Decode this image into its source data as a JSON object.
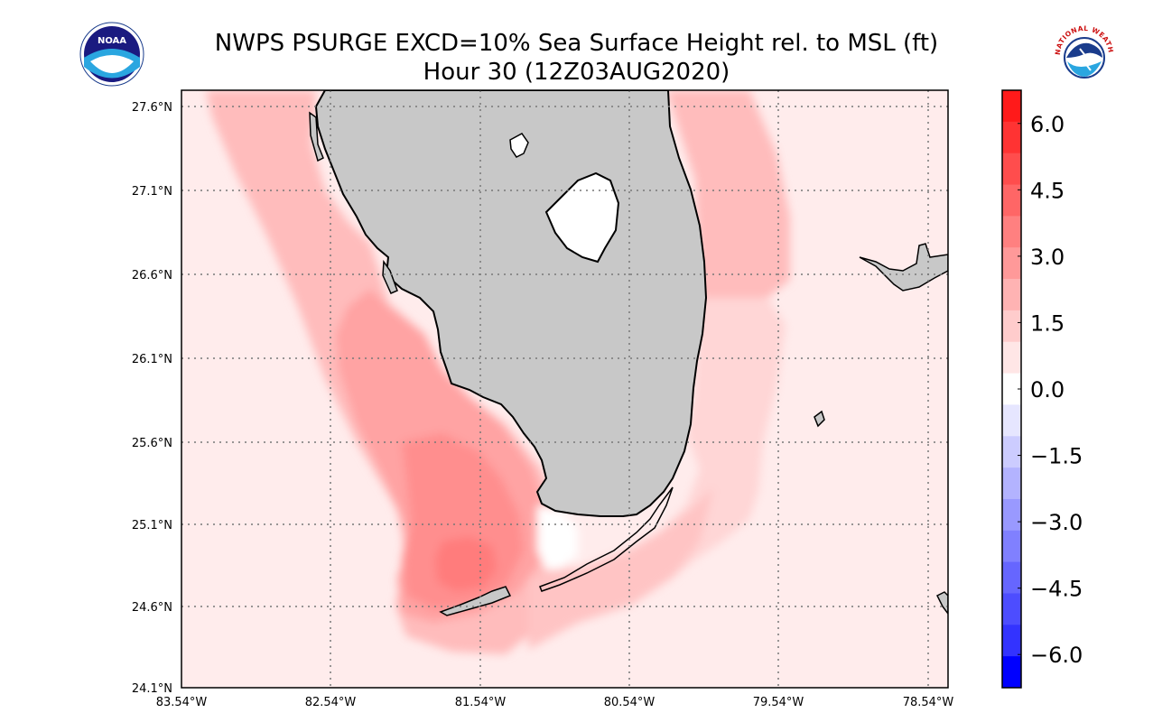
{
  "title_line1": "NWPS PSURGE EXCD=10% Sea Surface Height rel. to MSL (ft)",
  "title_line2": "Hour 30 (12Z03AUG2020)",
  "logos": {
    "left": {
      "icon": "noaa-logo",
      "text": "NOAA"
    },
    "right": {
      "icon": "nws-logo",
      "text": "NATIONAL WEATHER SERVICE"
    }
  },
  "map": {
    "lat_labels": [
      "27.6°N",
      "27.1°N",
      "26.6°N",
      "26.1°N",
      "25.6°N",
      "25.1°N",
      "24.6°N",
      "24.1°N"
    ],
    "lon_labels": [
      "83.54°W",
      "82.54°W",
      "81.54°W",
      "80.54°W",
      "79.54°W",
      "78.54°W"
    ],
    "land_color": "#c8c8c8",
    "grid_style": "dotted"
  },
  "colorbar": {
    "tick_labels": [
      "6.0",
      "4.5",
      "3.0",
      "1.5",
      "0.0",
      "−1.5",
      "−3.0",
      "−4.5",
      "−6.0"
    ],
    "range": [
      -6.75,
      6.75
    ],
    "colors_top_to_bottom": [
      "#ff1a1a",
      "#ff3333",
      "#ff4d4d",
      "#ff6666",
      "#ff8080",
      "#ff9999",
      "#ffb3b3",
      "#ffcccc",
      "#ffe6e6",
      "#ffffff",
      "#e6e6ff",
      "#ccccff",
      "#b3b3ff",
      "#9999ff",
      "#8080ff",
      "#6666ff",
      "#4d4dff",
      "#3333ff",
      "#0000ff"
    ]
  }
}
